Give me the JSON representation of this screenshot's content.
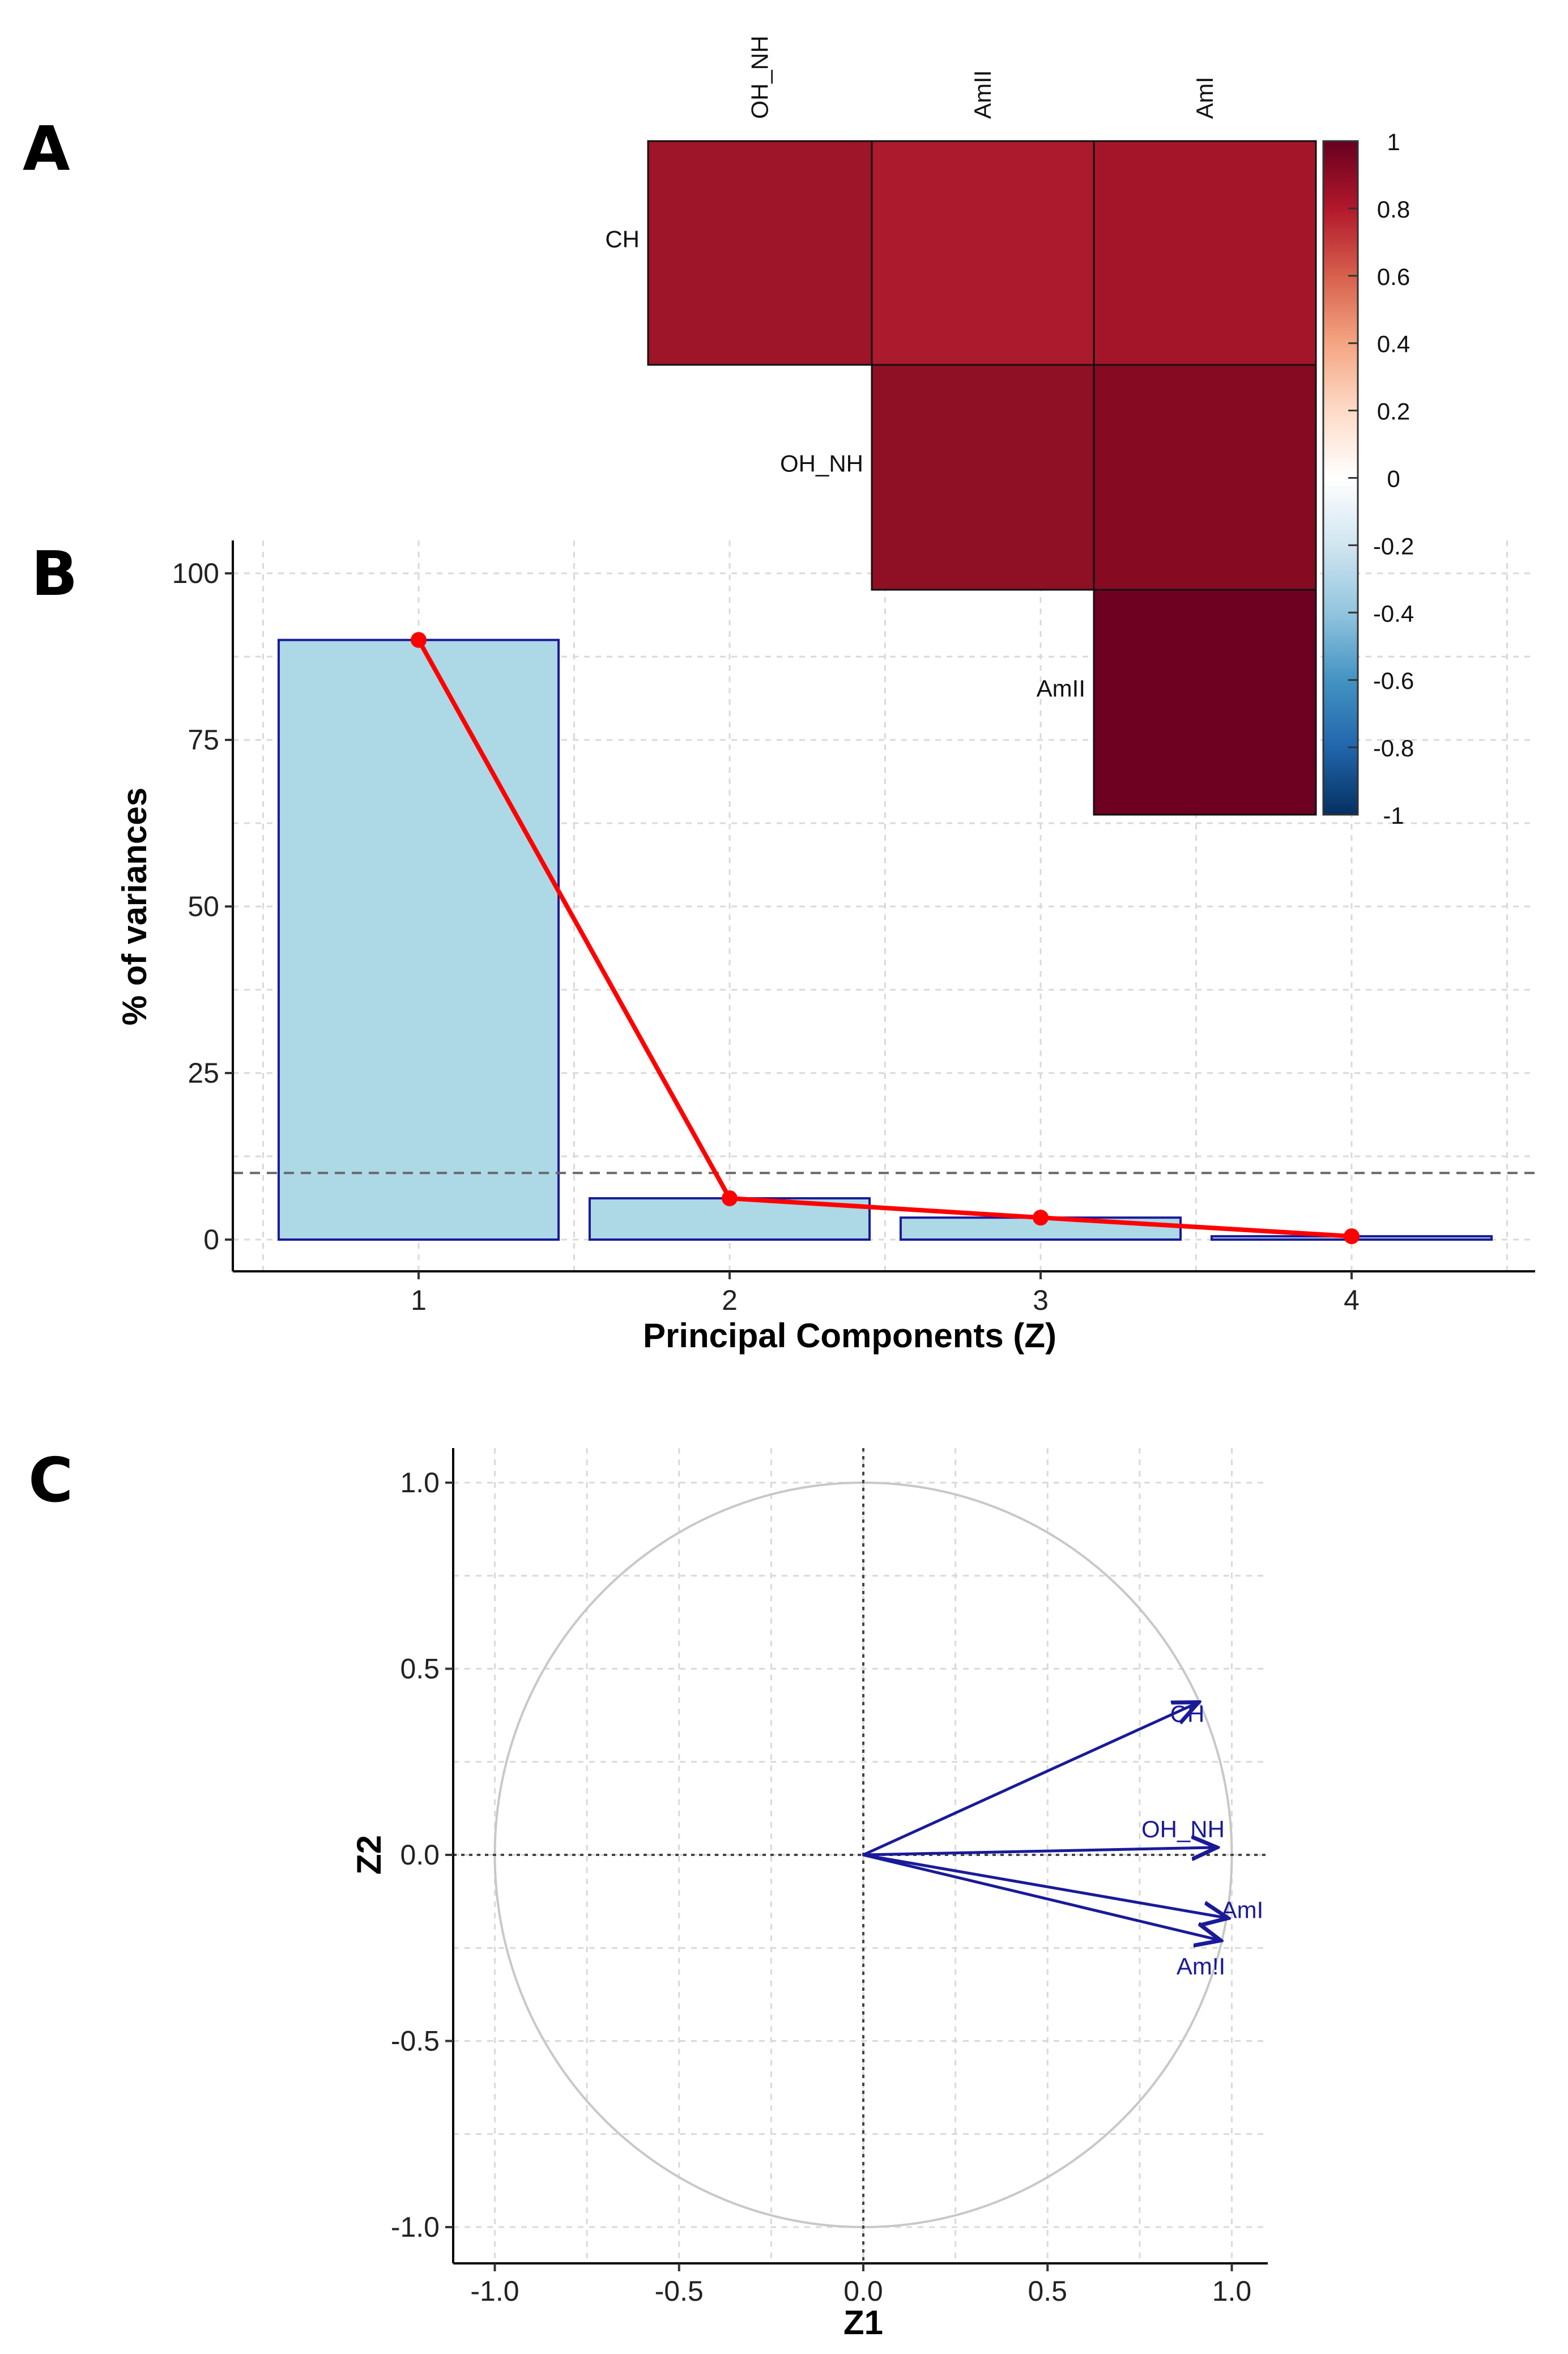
{
  "panels": {
    "a": "A",
    "b": "B",
    "c": "C"
  },
  "chart_data": [
    {
      "type": "heatmap",
      "panel": "A",
      "title": "",
      "row_labels": [
        "CH",
        "OH_NH",
        "AmII"
      ],
      "col_labels": [
        "OH_NH",
        "AmII",
        "AmI"
      ],
      "values": [
        [
          0.9,
          0.85,
          0.87
        ],
        [
          null,
          0.93,
          0.95
        ],
        [
          null,
          null,
          0.99
        ]
      ],
      "cell_colors": [
        [
          "#9e1428",
          "#ab1a2d",
          "#a51529"
        ],
        [
          null,
          "#8f0f25",
          "#850a22"
        ],
        [
          null,
          null,
          "#6e0021"
        ]
      ],
      "colorbar": {
        "range": [
          -1,
          1
        ],
        "ticks": [
          "1",
          "0.8",
          "0.6",
          "0.4",
          "0.2",
          "0",
          "-0.2",
          "-0.4",
          "-0.6",
          "-0.8",
          "-1"
        ],
        "colors": [
          "#053061",
          "#2166ac",
          "#4393c3",
          "#92c5de",
          "#d1e5f0",
          "#ffffff",
          "#fddbc7",
          "#f4a582",
          "#d6604d",
          "#b2182b",
          "#67001f"
        ]
      }
    },
    {
      "type": "bar",
      "panel": "B",
      "categories": [
        "1",
        "2",
        "3",
        "4"
      ],
      "values": [
        90,
        6.2,
        3.3,
        0.5
      ],
      "line_values": [
        90,
        6.2,
        3.3,
        0.5
      ],
      "reference_line": 10,
      "xlabel": "Principal Components (Z)",
      "ylabel": "% of variances",
      "ylim": [
        0,
        105
      ],
      "yticks": [
        "0",
        "25",
        "50",
        "75",
        "100"
      ],
      "grid": true,
      "colors": {
        "bar_fill": "#add8e6",
        "bar_edge": "#1a1a99",
        "line": "#ff0000"
      }
    },
    {
      "type": "scatter",
      "subtype": "pca-correlation-circle",
      "panel": "C",
      "xlabel": "Z1",
      "ylabel": "Z2",
      "xlim": [
        -1.1,
        1.1
      ],
      "ylim": [
        -1.1,
        1.1
      ],
      "xticks": [
        "-1.0",
        "-0.5",
        "0.0",
        "0.5",
        "1.0"
      ],
      "yticks": [
        "-1.0",
        "-0.5",
        "0.0",
        "0.5",
        "1.0"
      ],
      "grid": true,
      "vectors": [
        {
          "name": "CH",
          "x": 0.91,
          "y": 0.41
        },
        {
          "name": "OH_NH",
          "x": 0.96,
          "y": 0.02
        },
        {
          "name": "AmI",
          "x": 0.99,
          "y": -0.17
        },
        {
          "name": "AmII",
          "x": 0.97,
          "y": -0.23
        }
      ],
      "vector_label_texts": [
        "CH",
        "OH_NH",
        "AmI",
        "Am!I"
      ],
      "colors": {
        "vector": "#1a1a99",
        "circle": "#c8c8c8"
      }
    }
  ]
}
